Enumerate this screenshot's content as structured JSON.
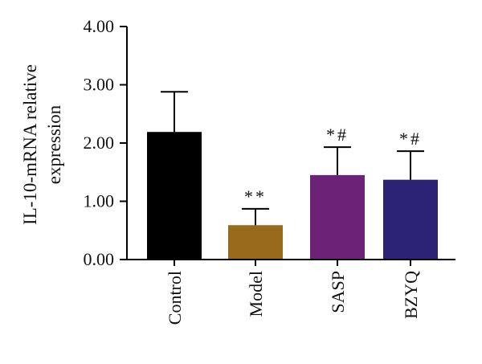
{
  "chart_data": {
    "type": "bar",
    "categories": [
      "Control",
      "Model",
      "SASP",
      "BZYQ"
    ],
    "values": [
      2.19,
      0.59,
      1.45,
      1.37
    ],
    "errors": [
      0.69,
      0.28,
      0.48,
      0.49
    ],
    "annotations": [
      "",
      "**",
      "*#",
      "*#"
    ],
    "colors": [
      "#000000",
      "#9A6A1C",
      "#6C2277",
      "#2B2375"
    ],
    "ylabel_lines": [
      "IL-10-mRNA relative",
      "expression"
    ],
    "xlabel": "",
    "title": "",
    "ylim": [
      0,
      4
    ],
    "yticks": [
      0,
      1,
      2,
      3,
      4
    ],
    "ytick_labels": [
      "0.00",
      "1.00",
      "2.00",
      "3.00",
      "4.00"
    ],
    "grid": false,
    "legend": "none"
  }
}
